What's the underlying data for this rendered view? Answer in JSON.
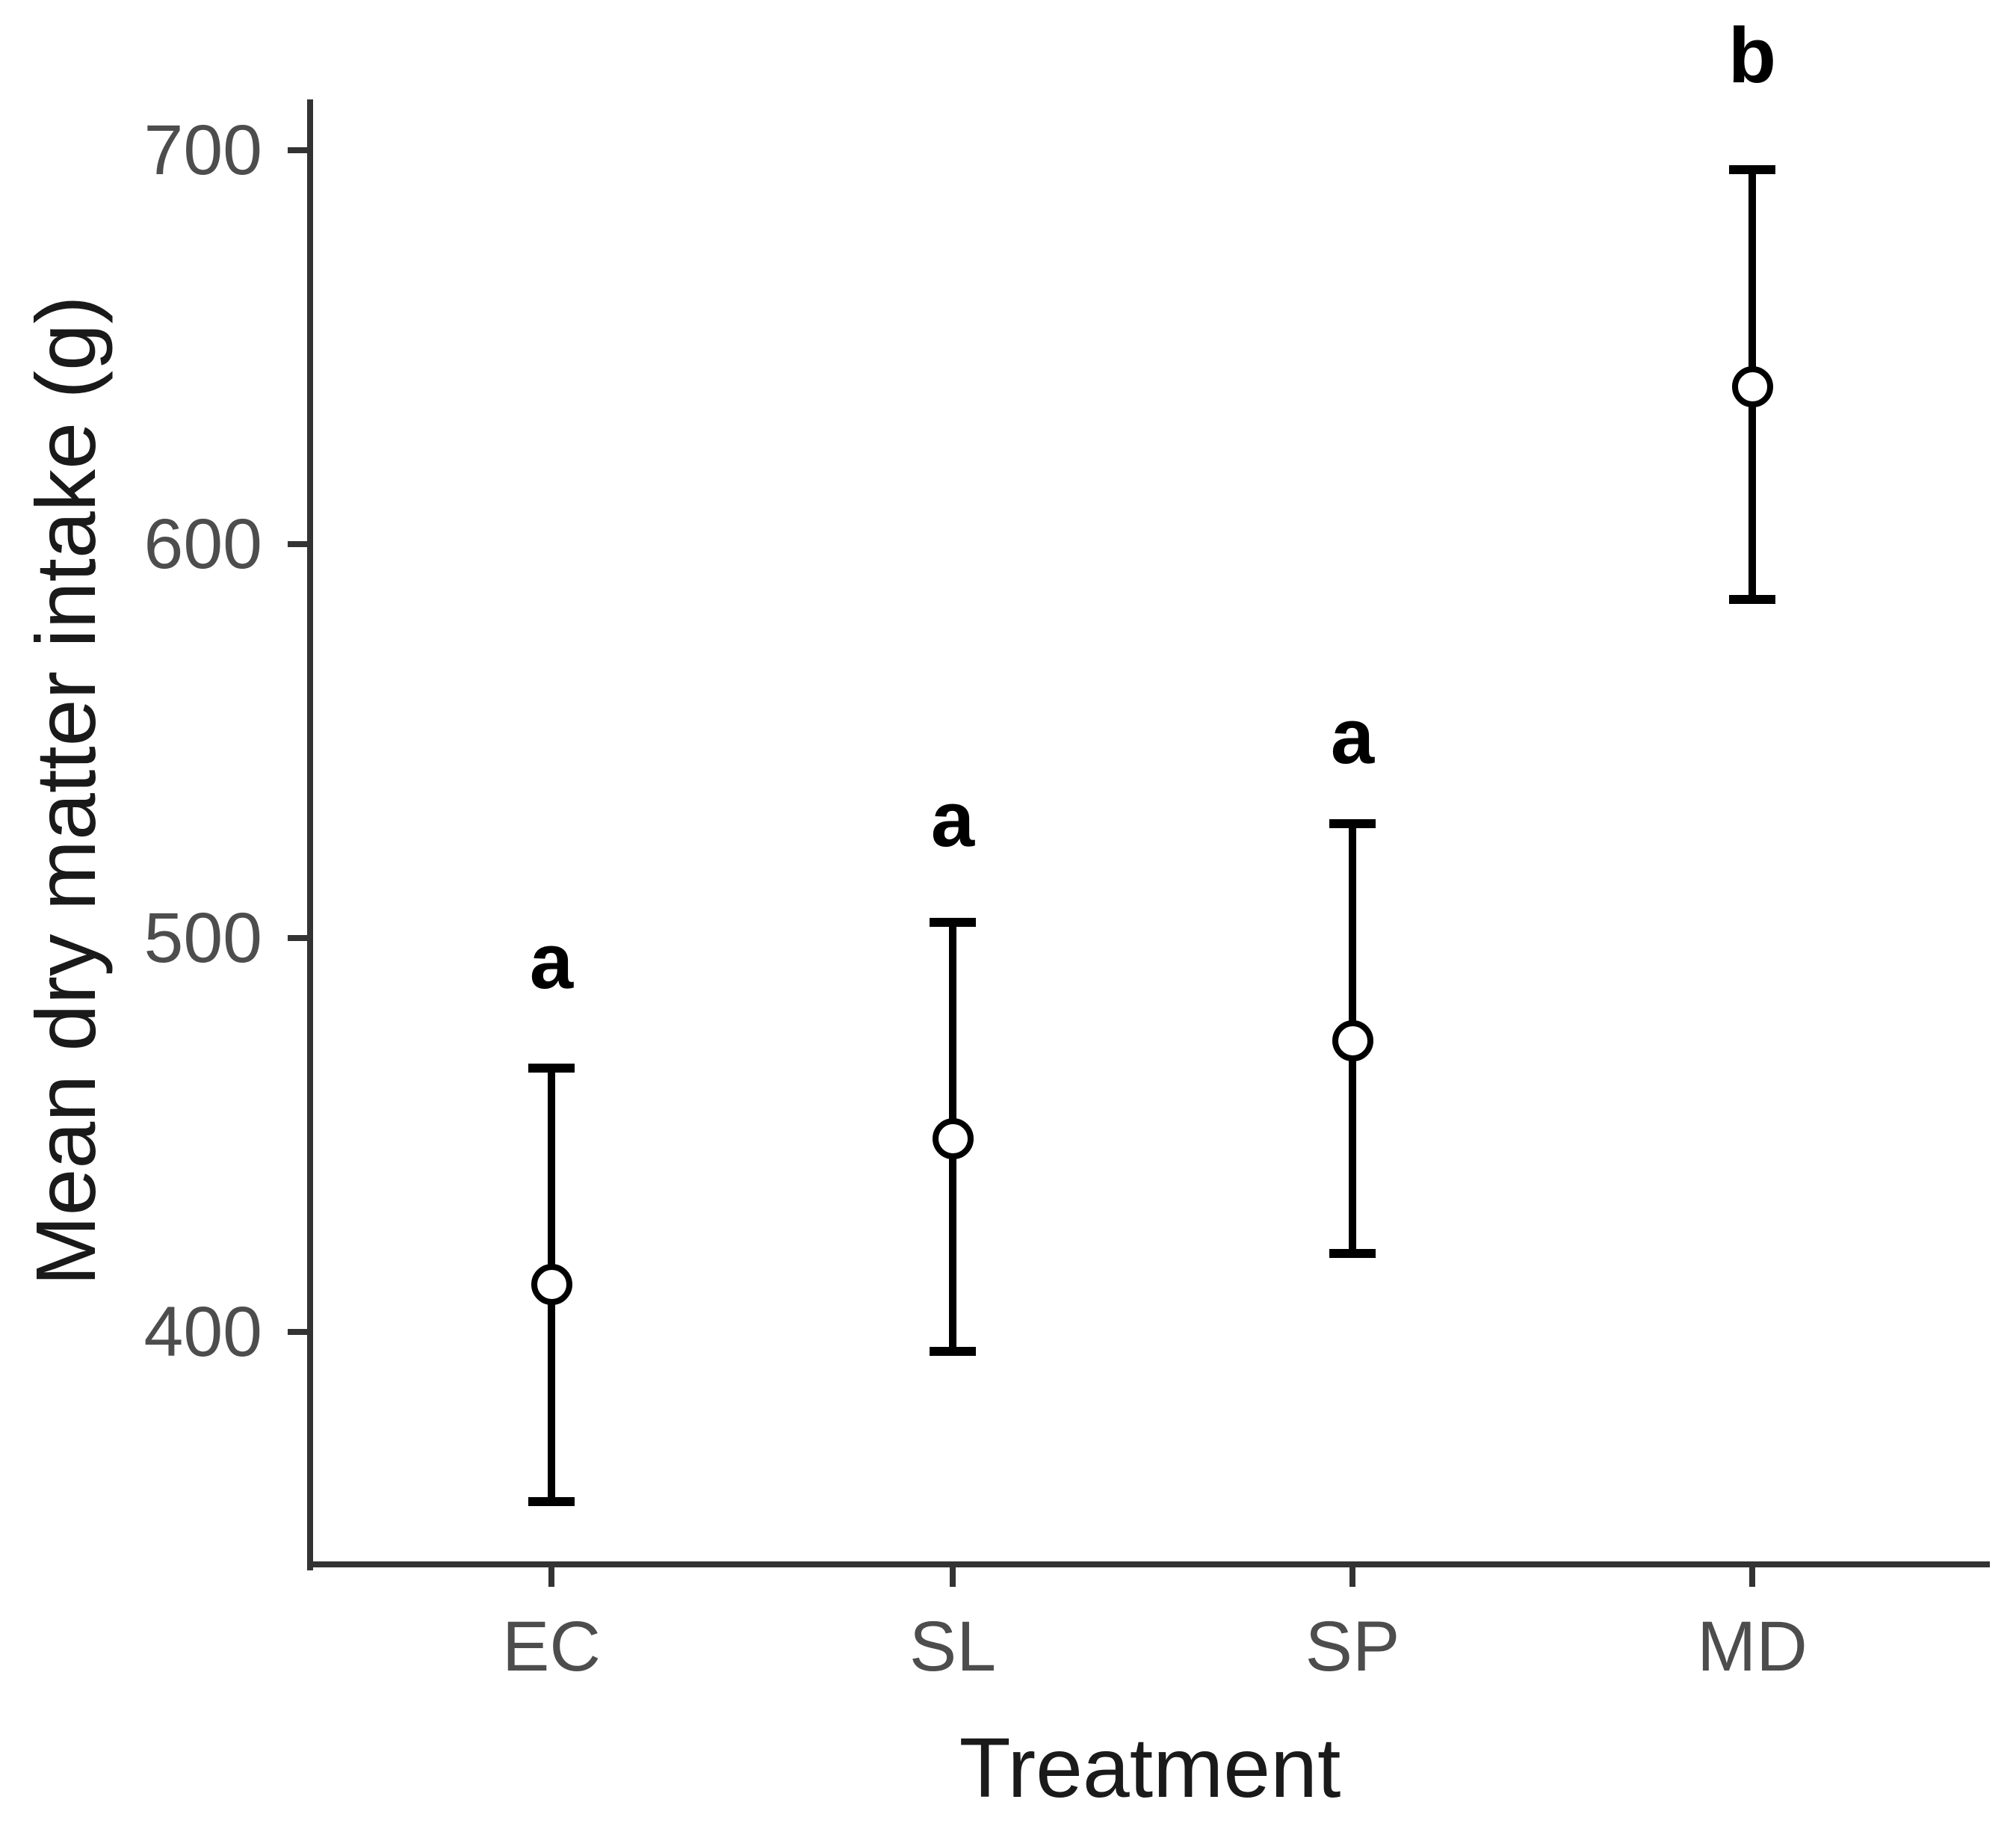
{
  "chart_data": {
    "type": "scatter",
    "subtype": "point-with-errorbars",
    "title": "",
    "xlabel": "Treatment",
    "ylabel": "Mean dry matter intake (g)",
    "categories": [
      "EC",
      "SL",
      "SP",
      "MD"
    ],
    "series": [
      {
        "name": "Mean dry matter intake (g)",
        "values": [
          412,
          449,
          474,
          640
        ],
        "error_upper": [
          467,
          504,
          529,
          695
        ],
        "error_lower": [
          357,
          395,
          420,
          586
        ]
      }
    ],
    "significance_letters": [
      "a",
      "a",
      "a",
      "b"
    ],
    "significance_letter_y": [
      494,
      530,
      551,
      724
    ],
    "yticks": [
      400,
      500,
      600,
      700
    ],
    "ylim": [
      341,
      714
    ],
    "grid": false,
    "legend": false,
    "marker": {
      "shape": "open-circle",
      "fill": "#ffffff",
      "stroke": "#000000"
    },
    "colors": {
      "errorbar": "#000000",
      "axis_line": "#333333",
      "tick_label": "#4d4d4d",
      "axis_title": "#1a1a1a",
      "letter": "#000000",
      "background": "#ffffff"
    }
  }
}
